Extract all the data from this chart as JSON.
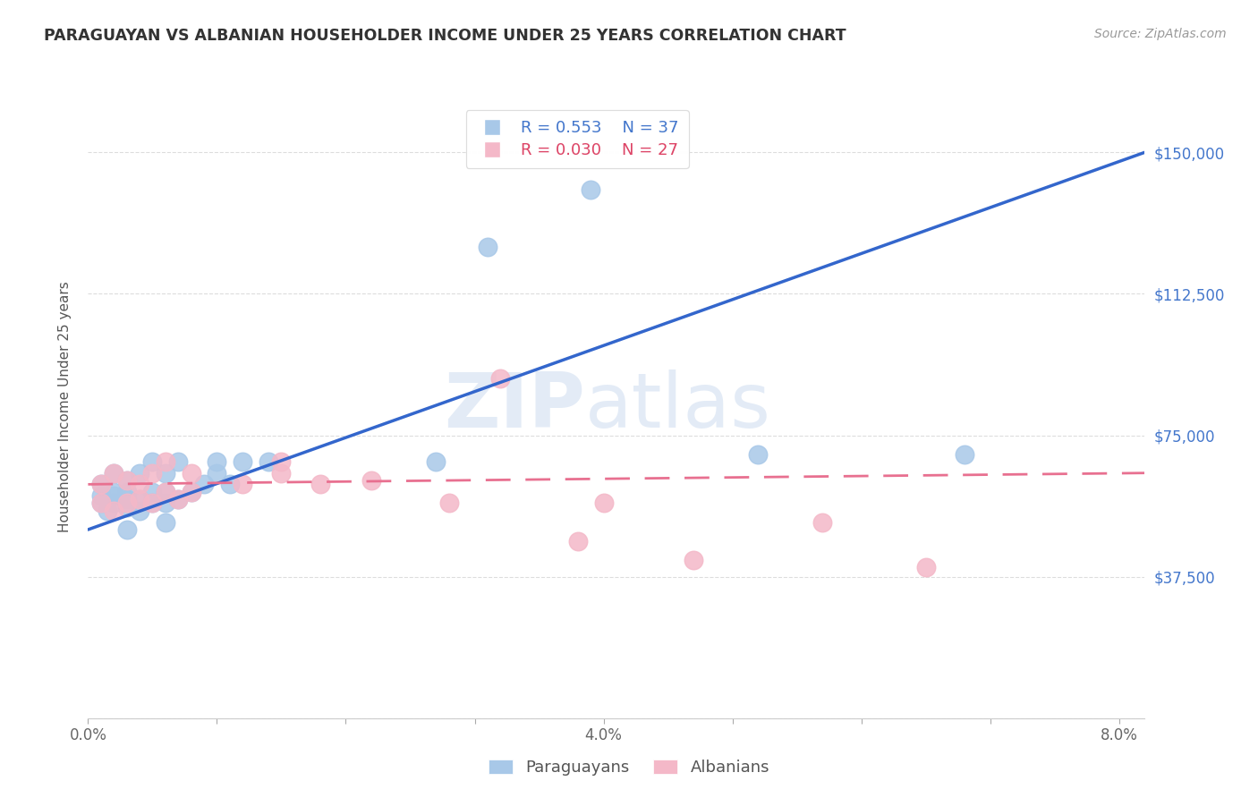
{
  "title": "PARAGUAYAN VS ALBANIAN HOUSEHOLDER INCOME UNDER 25 YEARS CORRELATION CHART",
  "source": "Source: ZipAtlas.com",
  "ylabel": "Householder Income Under 25 years",
  "xlim": [
    0.0,
    0.082
  ],
  "ylim": [
    0,
    165000
  ],
  "y_ticks": [
    0,
    37500,
    75000,
    112500,
    150000
  ],
  "y_tick_labels": [
    "",
    "$37,500",
    "$75,000",
    "$112,500",
    "$150,000"
  ],
  "x_ticks": [
    0.0,
    0.01,
    0.02,
    0.03,
    0.04,
    0.05,
    0.06,
    0.07,
    0.08
  ],
  "x_tick_labels_shown": [
    "0.0%",
    "",
    "",
    "",
    "4.0%",
    "",
    "",
    "",
    "8.0%"
  ],
  "legend_r1": "R = 0.553",
  "legend_n1": "N = 37",
  "legend_r2": "R = 0.030",
  "legend_n2": "N = 27",
  "paraguayan_color": "#a8c8e8",
  "albanian_color": "#f4b8c8",
  "trend_blue_color": "#3366cc",
  "trend_pink_color": "#e87090",
  "paraguayan_x": [
    0.001,
    0.001,
    0.001,
    0.0015,
    0.002,
    0.002,
    0.002,
    0.002,
    0.003,
    0.003,
    0.003,
    0.003,
    0.003,
    0.004,
    0.004,
    0.004,
    0.005,
    0.005,
    0.005,
    0.006,
    0.006,
    0.006,
    0.006,
    0.007,
    0.007,
    0.008,
    0.009,
    0.01,
    0.01,
    0.011,
    0.012,
    0.014,
    0.027,
    0.031,
    0.039,
    0.052,
    0.068
  ],
  "paraguayan_y": [
    57000,
    59000,
    62000,
    55000,
    57000,
    59000,
    60000,
    65000,
    50000,
    56000,
    58000,
    60000,
    63000,
    55000,
    58000,
    65000,
    57000,
    60000,
    68000,
    52000,
    57000,
    60000,
    65000,
    58000,
    68000,
    60000,
    62000,
    65000,
    68000,
    62000,
    68000,
    68000,
    68000,
    125000,
    140000,
    70000,
    70000
  ],
  "albanian_x": [
    0.001,
    0.001,
    0.002,
    0.002,
    0.003,
    0.003,
    0.004,
    0.004,
    0.005,
    0.005,
    0.006,
    0.006,
    0.007,
    0.008,
    0.008,
    0.012,
    0.015,
    0.015,
    0.018,
    0.022,
    0.028,
    0.032,
    0.038,
    0.04,
    0.047,
    0.057,
    0.065
  ],
  "albanian_y": [
    57000,
    62000,
    55000,
    65000,
    57000,
    63000,
    58000,
    62000,
    57000,
    65000,
    60000,
    68000,
    58000,
    60000,
    65000,
    62000,
    65000,
    68000,
    62000,
    63000,
    57000,
    90000,
    47000,
    57000,
    42000,
    52000,
    40000
  ],
  "watermark_zip": "ZIP",
  "watermark_atlas": "atlas",
  "bg_color": "#ffffff",
  "grid_color": "#dddddd"
}
